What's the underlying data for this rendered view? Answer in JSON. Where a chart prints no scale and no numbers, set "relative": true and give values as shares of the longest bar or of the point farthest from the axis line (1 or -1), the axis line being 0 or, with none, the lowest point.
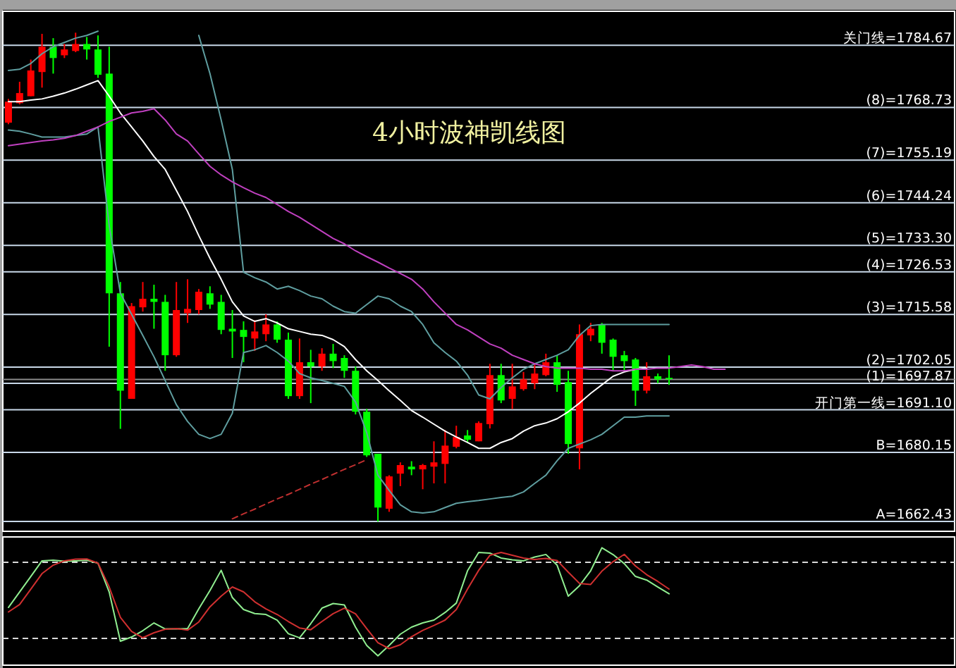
{
  "chart_data": [
    {
      "type": "candlestick",
      "title": "4小时波神凯线图",
      "ylim": [
        1659.9,
        1793.4
      ],
      "categories": [
        null,
        null,
        null,
        null,
        null,
        null,
        null,
        null,
        null,
        null,
        null,
        null,
        null,
        null,
        null,
        null,
        null,
        null,
        null,
        null,
        null,
        null,
        null,
        null,
        null,
        null,
        null,
        null,
        null,
        null,
        null,
        null,
        null,
        null,
        null,
        null,
        null,
        null,
        null,
        null,
        null,
        null,
        null,
        null,
        null,
        null,
        null,
        null,
        null,
        null,
        null,
        null,
        null,
        null,
        null,
        null,
        null,
        null,
        null,
        null,
        null,
        null,
        null,
        null,
        null,
        null,
        null,
        null,
        null,
        null,
        null,
        null,
        null,
        null,
        null,
        null,
        null,
        null,
        null,
        null,
        null,
        null,
        null,
        null,
        null
      ],
      "ohlc": [
        [
          1764.8,
          1770.9,
          1764.4,
          1770.2
        ],
        [
          1769.8,
          1775.3,
          1769.5,
          1772.4
        ],
        [
          1771.6,
          1781.0,
          1771.6,
          1778.2
        ],
        [
          1777.8,
          1787.6,
          1773.8,
          1784.3
        ],
        [
          1784.3,
          1786.5,
          1777.4,
          1781.4
        ],
        [
          1782.1,
          1785.0,
          1781.4,
          1783.6
        ],
        [
          1783.2,
          1787.9,
          1782.9,
          1785.0
        ],
        [
          1785.0,
          1786.8,
          1781.0,
          1783.6
        ],
        [
          1783.6,
          1787.2,
          1776.3,
          1777.1
        ],
        [
          1777.4,
          1784.3,
          1707.3,
          1721.0
        ],
        [
          1721.0,
          1723.9,
          1686.2,
          1696.0
        ],
        [
          1693.9,
          1718.5,
          1693.9,
          1717.7
        ],
        [
          1717.4,
          1723.9,
          1716.3,
          1719.6
        ],
        [
          1719.6,
          1723.2,
          1711.9,
          1718.8
        ],
        [
          1718.8,
          1720.6,
          1701.1,
          1705.1
        ],
        [
          1705.1,
          1723.9,
          1704.7,
          1716.7
        ],
        [
          1715.9,
          1724.6,
          1713.4,
          1717.0
        ],
        [
          1716.7,
          1722.1,
          1715.6,
          1721.4
        ],
        [
          1721.0,
          1722.8,
          1717.0,
          1718.1
        ],
        [
          1718.8,
          1720.6,
          1710.5,
          1711.6
        ],
        [
          1711.9,
          1716.7,
          1704.4,
          1711.2
        ],
        [
          1711.6,
          1713.8,
          1703.3,
          1709.8
        ],
        [
          1709.4,
          1714.1,
          1706.2,
          1711.2
        ],
        [
          1710.5,
          1715.6,
          1708.7,
          1713.0
        ],
        [
          1713.0,
          1713.8,
          1708.3,
          1709.1
        ],
        [
          1709.1,
          1710.9,
          1693.9,
          1694.6
        ],
        [
          1694.6,
          1709.4,
          1693.9,
          1703.3
        ],
        [
          1703.3,
          1706.5,
          1692.8,
          1702.2
        ],
        [
          1702.2,
          1706.9,
          1701.1,
          1705.5
        ],
        [
          1705.5,
          1708.0,
          1701.8,
          1703.6
        ],
        [
          1704.4,
          1705.1,
          1699.3,
          1701.1
        ],
        [
          1701.1,
          1702.2,
          1689.9,
          1690.6
        ],
        [
          1690.6,
          1691.3,
          1679.0,
          1679.4
        ],
        [
          1679.8,
          1679.8,
          1662.4,
          1666.0
        ],
        [
          1665.7,
          1674.3,
          1664.9,
          1674.0
        ],
        [
          1674.7,
          1677.6,
          1671.5,
          1676.9
        ],
        [
          1676.5,
          1677.9,
          1674.3,
          1675.8
        ],
        [
          1675.8,
          1677.2,
          1670.7,
          1676.9
        ],
        [
          1676.5,
          1683.0,
          1672.2,
          1677.6
        ],
        [
          1677.2,
          1685.9,
          1672.2,
          1681.9
        ],
        [
          1681.6,
          1687.0,
          1681.2,
          1684.1
        ],
        [
          1684.5,
          1685.9,
          1682.7,
          1683.4
        ],
        [
          1683.0,
          1688.1,
          1683.0,
          1687.7
        ],
        [
          1687.4,
          1702.9,
          1686.3,
          1700.0
        ],
        [
          1700.0,
          1702.9,
          1692.8,
          1693.5
        ],
        [
          1693.9,
          1702.9,
          1691.3,
          1697.1
        ],
        [
          1696.4,
          1700.8,
          1696.0,
          1698.9
        ],
        [
          1697.9,
          1702.9,
          1696.4,
          1700.4
        ],
        [
          1700.0,
          1705.5,
          1699.7,
          1703.3
        ],
        [
          1703.3,
          1705.1,
          1695.7,
          1697.5
        ],
        [
          1698.2,
          1701.1,
          1679.8,
          1682.3
        ],
        [
          1681.2,
          1713.0,
          1675.8,
          1710.5
        ],
        [
          1710.2,
          1713.4,
          1708.7,
          1711.9
        ],
        [
          1713.0,
          1713.4,
          1705.5,
          1708.3
        ],
        [
          1709.1,
          1709.4,
          1701.1,
          1704.7
        ],
        [
          1705.1,
          1706.2,
          1701.1,
          1703.6
        ],
        [
          1704.0,
          1704.4,
          1692.1,
          1696.0
        ],
        [
          1696.0,
          1703.3,
          1695.3,
          1699.7
        ],
        [
          1699.7,
          1700.4,
          1697.9,
          1698.9
        ],
        [
          1699.3,
          1705.1,
          1697.5,
          1699.3
        ],
        null,
        null,
        null,
        null,
        null,
        null,
        null,
        null,
        null,
        null,
        null,
        null,
        null,
        null,
        null,
        null,
        null,
        null,
        null,
        null,
        null,
        null,
        null,
        null,
        null
      ],
      "colors": [
        "#ff0000",
        "#ff0000",
        "#ff0000",
        "#ff0000",
        "#00ff00",
        "#ff0000",
        "#ff0000",
        "#00ff00",
        "#00ff00",
        "#00ff00",
        "#00ff00",
        "#ff0000",
        "#ff0000",
        "#00ff00",
        "#00ff00",
        "#ff0000",
        "#ff0000",
        "#ff0000",
        "#00ff00",
        "#00ff00",
        "#00ff00",
        "#00ff00",
        "#ff0000",
        "#ff0000",
        "#00ff00",
        "#00ff00",
        "#ff0000",
        "#00ff00",
        "#ff0000",
        "#00ff00",
        "#00ff00",
        "#00ff00",
        "#00ff00",
        "#00ff00",
        "#ff0000",
        "#ff0000",
        "#00ff00",
        "#ff0000",
        "#ff0000",
        "#ff0000",
        "#ff0000",
        "#00ff00",
        "#ff0000",
        "#ff0000",
        "#00ff00",
        "#ff0000",
        "#ff0000",
        "#ff0000",
        "#ff0000",
        "#00ff00",
        "#00ff00",
        "#ff0000",
        "#ff0000",
        "#00ff00",
        "#00ff00",
        "#00ff00",
        "#00ff00",
        "#ff0000",
        "#00ff00",
        "#00ff00",
        null,
        null,
        null,
        null,
        null,
        null,
        null,
        null,
        null,
        null,
        null,
        null,
        null,
        null,
        null,
        null,
        null,
        null,
        null,
        null,
        null,
        null,
        null,
        null,
        null
      ],
      "series": [
        {
          "type": "line",
          "color": "#5f9ea0",
          "values": [
            1778.2,
            1778.5,
            1780.0,
            1782.5,
            1784.3,
            1785.4,
            1786.5,
            1787.2,
            1788.3,
            null,
            null,
            null,
            null,
            null,
            null,
            null,
            null,
            1787.2,
            1777.4,
            1765.5,
            1752.8,
            1726.4,
            1725.0,
            1723.9,
            1722.1,
            1722.8,
            1721.7,
            1720.3,
            1719.6,
            1717.7,
            1716.3,
            1715.9,
            1718.1,
            1720.3,
            1719.6,
            1717.7,
            1716.3,
            1713.0,
            1708.3,
            1705.8,
            1703.6,
            1700.0,
            1694.9,
            1693.9,
            1696.8,
            1699.3,
            1701.5,
            1702.9,
            1704.0,
            1705.1,
            1706.5,
            1710.2,
            1712.7,
            1713.0,
            1713.0,
            1713.0,
            1713.0,
            1713.0,
            1713.0,
            1713.0,
            null,
            null,
            null,
            null,
            null,
            null,
            null,
            null,
            null,
            null,
            null,
            null,
            null,
            null,
            null,
            null,
            null,
            null,
            null,
            null,
            null,
            null,
            null,
            null,
            null
          ]
        },
        {
          "type": "line",
          "color": "#5f9ea0",
          "values": [
            1762.9,
            1762.6,
            1761.9,
            1761.1,
            1761.1,
            1761.1,
            1761.5,
            1761.9,
            1763.7,
            1738.4,
            1721.0,
            1715.6,
            1710.2,
            1704.7,
            1698.6,
            1692.4,
            1688.1,
            1684.8,
            1683.7,
            1684.8,
            1690.2,
            1705.8,
            1706.5,
            1707.6,
            1705.8,
            1703.6,
            1700.4,
            1699.3,
            1698.6,
            1697.9,
            1697.1,
            1693.1,
            1685.2,
            1674.3,
            1670.4,
            1666.7,
            1664.9,
            1664.6,
            1664.9,
            1666.0,
            1667.1,
            1667.5,
            1667.8,
            1668.2,
            1668.6,
            1668.9,
            1670.0,
            1672.2,
            1674.3,
            1678.0,
            1681.2,
            1682.3,
            1683.4,
            1684.8,
            1687.0,
            1689.2,
            1689.2,
            1689.5,
            1689.5,
            1689.5,
            null,
            null,
            null,
            null,
            null,
            null,
            null,
            null,
            null,
            null,
            null,
            null,
            null,
            null,
            null,
            null,
            null,
            null,
            null,
            null,
            null,
            null,
            null,
            null,
            null
          ]
        },
        {
          "type": "line",
          "color": "#ffffff",
          "values": [
            1770.2,
            1770.2,
            1770.6,
            1770.9,
            1771.6,
            1772.4,
            1773.4,
            1774.5,
            1775.6,
            1771.6,
            1767.3,
            1763.7,
            1760.1,
            1756.1,
            1752.8,
            1747.4,
            1742.0,
            1735.8,
            1730.0,
            1724.6,
            1718.8,
            1715.2,
            1713.8,
            1714.5,
            1713.4,
            1711.9,
            1711.2,
            1710.5,
            1710.2,
            1709.1,
            1707.3,
            1704.0,
            1701.1,
            1698.6,
            1696.0,
            1693.5,
            1690.9,
            1689.2,
            1687.4,
            1685.6,
            1684.1,
            1682.7,
            1681.2,
            1681.2,
            1682.7,
            1683.7,
            1685.6,
            1687.0,
            1687.7,
            1688.8,
            1690.6,
            1692.8,
            1695.3,
            1697.5,
            1699.7,
            1700.8,
            1701.5,
            1701.8,
            null,
            null,
            null,
            null,
            null,
            null,
            null,
            null,
            null,
            null,
            null,
            null,
            null,
            null,
            null,
            null,
            null,
            null,
            null,
            null,
            null,
            null,
            null,
            null,
            null,
            null,
            null
          ]
        },
        {
          "type": "line",
          "color": "#c040c0",
          "values": [
            1758.9,
            1759.3,
            1759.7,
            1760.1,
            1760.4,
            1760.8,
            1761.5,
            1762.6,
            1763.7,
            1765.1,
            1766.2,
            1767.3,
            1767.7,
            1768.4,
            1765.5,
            1761.9,
            1760.1,
            1756.8,
            1753.6,
            1751.4,
            1749.6,
            1748.1,
            1746.7,
            1745.6,
            1743.8,
            1742.0,
            1740.5,
            1738.7,
            1736.9,
            1735.1,
            1733.7,
            1731.9,
            1730.4,
            1729.0,
            1727.5,
            1726.1,
            1724.6,
            1722.1,
            1718.8,
            1715.9,
            1713.0,
            1711.6,
            1709.8,
            1708.0,
            1706.9,
            1705.1,
            1704.0,
            1702.9,
            1702.2,
            1701.8,
            1701.8,
            1701.8,
            1701.5,
            1701.5,
            1701.1,
            1701.1,
            1701.5,
            1701.5,
            1701.8,
            1701.8,
            1702.2,
            1702.6,
            1702.2,
            1701.5,
            1701.5,
            null,
            null,
            null,
            null,
            null,
            null,
            null,
            null,
            null,
            null,
            null,
            null,
            null,
            null,
            null,
            null,
            null,
            null,
            null,
            null
          ]
        },
        {
          "type": "line",
          "color": "#c03030",
          "line_style": "dashed",
          "values": [
            null,
            null,
            null,
            null,
            null,
            null,
            null,
            null,
            null,
            null,
            null,
            null,
            null,
            null,
            null,
            null,
            null,
            null,
            null,
            null,
            1663.1,
            1664.4,
            1665.6,
            1666.9,
            1668.2,
            1669.4,
            1670.7,
            1672.0,
            1673.2,
            1674.5,
            1675.8,
            1677.0,
            1678.3,
            null,
            null,
            null,
            null,
            null,
            null,
            null,
            null,
            null,
            null,
            null,
            null,
            null,
            null,
            null,
            null,
            null,
            null,
            null,
            null,
            null,
            null,
            null,
            null,
            null,
            null,
            null,
            null,
            null,
            null,
            null,
            null,
            null,
            null,
            null,
            null,
            null,
            null,
            null,
            null,
            null,
            null,
            null,
            null,
            null,
            null,
            null,
            null,
            null,
            null,
            null,
            null
          ]
        }
      ],
      "ref_lines": [
        {
          "axis": "y",
          "value": 1698.9,
          "color": "#8a8a8a"
        },
        {
          "axis": "y",
          "value": 1784.67,
          "label": "关门线=1784.67",
          "color": "#c8d8e8"
        },
        {
          "axis": "y",
          "value": 1768.73,
          "label": "(8)=1768.73",
          "color": "#c8d8e8"
        },
        {
          "axis": "y",
          "value": 1755.19,
          "label": "(7)=1755.19",
          "color": "#c8d8e8"
        },
        {
          "axis": "y",
          "value": 1744.24,
          "label": "(6)=1744.24",
          "color": "#c8d8e8"
        },
        {
          "axis": "y",
          "value": 1733.3,
          "label": "(5)=1733.30",
          "color": "#c8d8e8"
        },
        {
          "axis": "y",
          "value": 1726.53,
          "label": "(4)=1726.53",
          "color": "#c8d8e8"
        },
        {
          "axis": "y",
          "value": 1715.58,
          "label": "(3)=1715.58",
          "color": "#c8d8e8"
        },
        {
          "axis": "y",
          "value": 1702.05,
          "label": "(2)=1702.05",
          "color": "#c8d8e8"
        },
        {
          "axis": "y",
          "value": 1697.87,
          "label": "(1)=1697.87",
          "color": "#c8d8e8"
        },
        {
          "axis": "y",
          "value": 1691.1,
          "label": "开门第一线=1691.10",
          "color": "#c8d8e8"
        },
        {
          "axis": "y",
          "value": 1680.15,
          "label": "B=1680.15",
          "color": "#c8d8e8"
        },
        {
          "axis": "y",
          "value": 1662.43,
          "label": "A=1662.43",
          "color": "#c8d8e8"
        }
      ]
    },
    {
      "type": "line",
      "relative": true,
      "categories": [
        null,
        null,
        null,
        null,
        null,
        null,
        null,
        null,
        null,
        null,
        null,
        null,
        null,
        null,
        null,
        null,
        null,
        null,
        null,
        null,
        null,
        null,
        null,
        null,
        null,
        null,
        null,
        null,
        null,
        null,
        null,
        null,
        null,
        null,
        null,
        null,
        null,
        null,
        null,
        null,
        null,
        null,
        null,
        null,
        null,
        null,
        null,
        null,
        null,
        null,
        null,
        null,
        null,
        null,
        null,
        null,
        null,
        null,
        null,
        null,
        null,
        null,
        null,
        null,
        null,
        null,
        null,
        null,
        null,
        null,
        null,
        null,
        null,
        null,
        null,
        null,
        null,
        null,
        null,
        null,
        null,
        null,
        null,
        null,
        null
      ],
      "series": [
        {
          "color": "#90ee90",
          "values": [
            0.492,
            0.624,
            0.756,
            0.889,
            0.894,
            0.885,
            0.889,
            0.894,
            0.868,
            0.624,
            0.204,
            0.24,
            0.294,
            0.36,
            0.309,
            0.309,
            0.312,
            0.48,
            0.636,
            0.808,
            0.576,
            0.474,
            0.44,
            0.432,
            0.384,
            0.268,
            0.233,
            0.354,
            0.486,
            0.525,
            0.513,
            0.324,
            0.168,
            0.08,
            0.168,
            0.264,
            0.324,
            0.36,
            0.384,
            0.449,
            0.529,
            0.804,
            0.96,
            0.955,
            0.913,
            0.897,
            0.889,
            0.921,
            0.943,
            0.852,
            0.588,
            0.677,
            0.804,
            1,
            0.942,
            0.865,
            0.756,
            0.725,
            0.666,
            0.608,
            null,
            null,
            null,
            null,
            null,
            null,
            null,
            null,
            null,
            null,
            null,
            null,
            null,
            null,
            null,
            null,
            null,
            null,
            null,
            null,
            null,
            null,
            null,
            null,
            null
          ]
        },
        {
          "color": "#d03030",
          "values": [
            0.453,
            0.517,
            0.648,
            0.78,
            0.852,
            0.889,
            0.903,
            0.905,
            0.869,
            0.666,
            0.408,
            0.288,
            0.234,
            0.276,
            0.306,
            0.312,
            0.298,
            0.368,
            0.497,
            0.588,
            0.666,
            0.624,
            0.54,
            0.48,
            0.432,
            0.372,
            0.317,
            0.302,
            0.372,
            0.439,
            0.486,
            0.437,
            0.312,
            0.192,
            0.141,
            0.174,
            0.243,
            0.296,
            0.338,
            0.384,
            0.474,
            0.648,
            0.808,
            0.936,
            0.96,
            0.936,
            0.912,
            0.901,
            0.909,
            0.892,
            0.792,
            0.697,
            0.688,
            0.801,
            0.882,
            0.944,
            0.845,
            0.771,
            0.713,
            0.648,
            null,
            null,
            null,
            null,
            null,
            null,
            null,
            null,
            null,
            null,
            null,
            null,
            null,
            null,
            null,
            null,
            null,
            null,
            null,
            null,
            null,
            null,
            null,
            null,
            null
          ]
        }
      ],
      "ref_lines": [
        {
          "axis": "y",
          "value": 0.877,
          "color": "#d8d8d8",
          "line_style": "dashed"
        },
        {
          "axis": "y",
          "value": 0.228,
          "color": "#d8d8d8",
          "line_style": "dashed"
        }
      ]
    }
  ]
}
